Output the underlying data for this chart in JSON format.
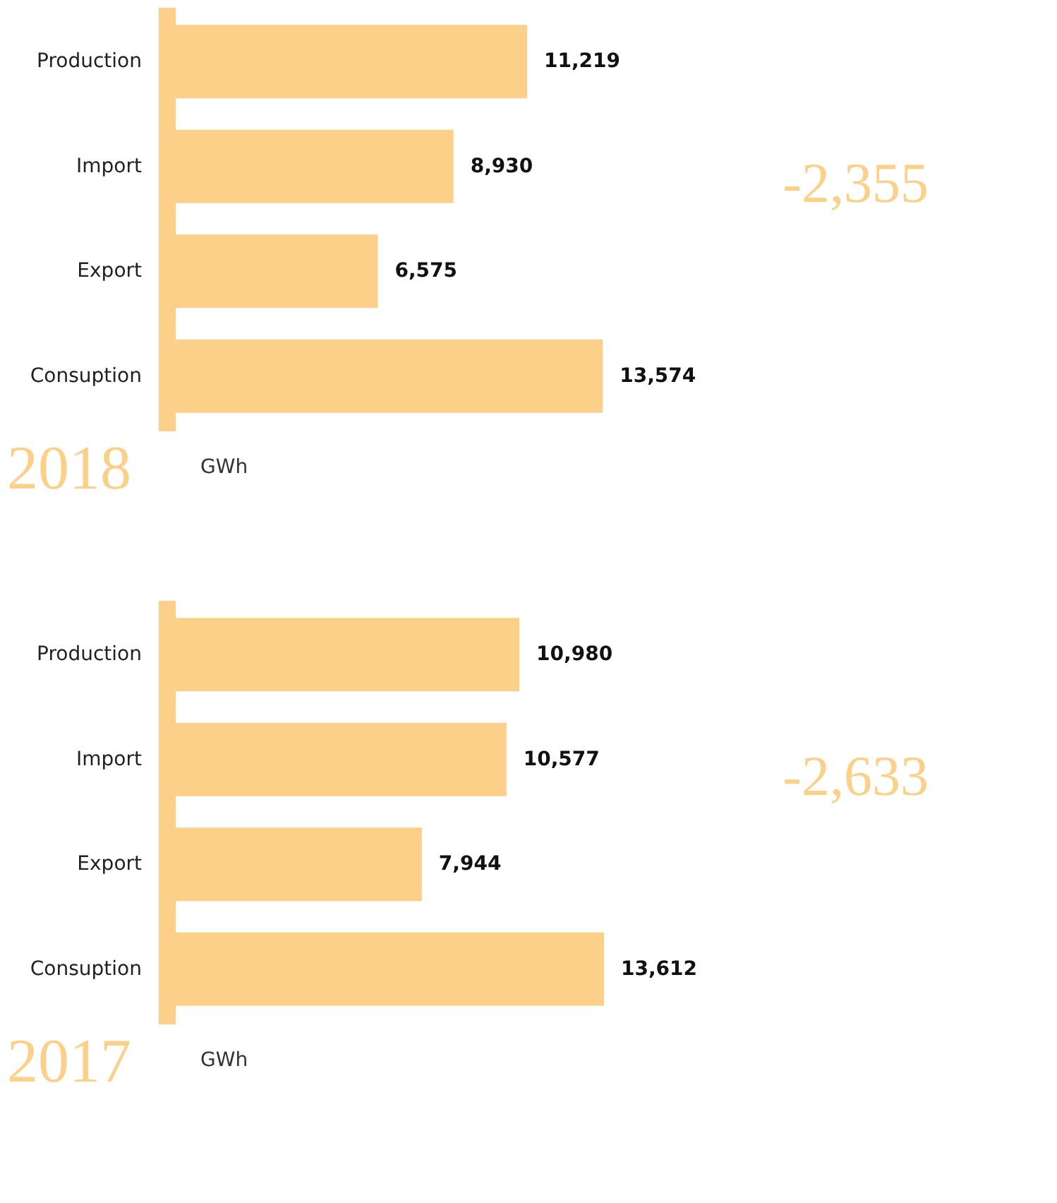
{
  "chart_data": [
    {
      "type": "bar",
      "orientation": "horizontal",
      "title": "2018",
      "xlabel": "GWh",
      "categories": [
        "Production",
        "Import",
        "Export",
        "Consuption"
      ],
      "values": [
        11219,
        8930,
        6575,
        13574
      ],
      "value_labels": [
        "11,219",
        "8,930",
        "6,575",
        "13,574"
      ],
      "color": "#fcd088",
      "tick_labels": "y",
      "annotations": [
        "-2,355"
      ]
    },
    {
      "type": "bar",
      "orientation": "horizontal",
      "title": "2017",
      "xlabel": "GWh",
      "categories": [
        "Production",
        "Import",
        "Export",
        "Consuption"
      ],
      "values": [
        10980,
        10577,
        7944,
        13612
      ],
      "value_labels": [
        "10,980",
        "10,577",
        "7,944",
        "13,612"
      ],
      "color": "#fcd088",
      "tick_labels": "y",
      "annotations": [
        "-2,633"
      ]
    }
  ]
}
